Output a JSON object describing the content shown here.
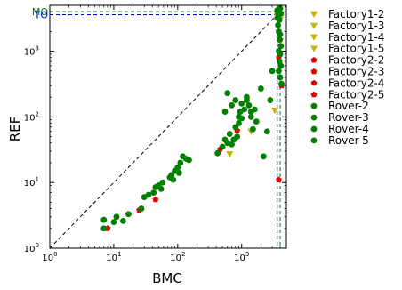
{
  "chart_data": {
    "type": "scatter",
    "xlabel": "BMC",
    "ylabel": "REF",
    "x_scale": "log",
    "y_scale": "log",
    "xlim": [
      1,
      5000
    ],
    "ylim": [
      1,
      5000
    ],
    "x_ticks": [
      {
        "value": 1,
        "base": "10",
        "exp": "0"
      },
      {
        "value": 10,
        "base": "10",
        "exp": "1"
      },
      {
        "value": 100,
        "base": "10",
        "exp": "2"
      },
      {
        "value": 1000,
        "base": "10",
        "exp": "3"
      }
    ],
    "y_ticks": [
      {
        "value": 1,
        "base": "10",
        "exp": "0"
      },
      {
        "value": 10,
        "base": "10",
        "exp": "1"
      },
      {
        "value": 100,
        "base": "10",
        "exp": "2"
      },
      {
        "value": 1000,
        "base": "10",
        "exp": "3"
      }
    ],
    "grid": false,
    "legend_position": "outside-right",
    "diagonal": true,
    "reference_lines": [
      {
        "label": "MO",
        "x": 4000,
        "y": 4000,
        "color": "#008000"
      },
      {
        "label": "TO",
        "x": 3600,
        "y": 3600,
        "color": "#0000cc"
      }
    ],
    "series": [
      {
        "name": "Factory1-2",
        "marker": "triangle",
        "color": "#c8b400",
        "points": [
          [
            650,
            27
          ],
          [
            3300,
            125
          ]
        ]
      },
      {
        "name": "Factory1-3",
        "marker": "triangle",
        "color": "#c8b400",
        "points": [
          [
            4000,
            1400
          ],
          [
            4000,
            3000
          ]
        ]
      },
      {
        "name": "Factory1-4",
        "marker": "triangle",
        "color": "#c8b400",
        "points": [
          [
            3600,
            3400
          ]
        ]
      },
      {
        "name": "Factory1-5",
        "marker": "triangle",
        "color": "#c8b400",
        "points": [
          [
            1400,
            60
          ]
        ]
      },
      {
        "name": "Factory2-2",
        "marker": "pentagon",
        "color": "#e00000",
        "points": [
          [
            8,
            2
          ]
        ]
      },
      {
        "name": "Factory2-3",
        "marker": "pentagon",
        "color": "#e00000",
        "points": [
          [
            25,
            3.8
          ],
          [
            45,
            5.5
          ]
        ]
      },
      {
        "name": "Factory2-4",
        "marker": "pentagon",
        "color": "#e00000",
        "points": [
          [
            460,
            32
          ],
          [
            850,
            62
          ],
          [
            3800,
            11
          ]
        ]
      },
      {
        "name": "Factory2-5",
        "marker": "pentagon",
        "color": "#e00000",
        "points": [
          [
            3800,
            800
          ],
          [
            4200,
            300
          ],
          [
            4000,
            1500
          ]
        ]
      },
      {
        "name": "Rover-2",
        "marker": "circle",
        "color": "#008000",
        "points": [
          [
            7,
            2.7
          ],
          [
            7,
            2
          ],
          [
            10,
            2.5
          ],
          [
            11,
            3
          ],
          [
            14,
            2.6
          ],
          [
            17,
            3.3
          ],
          [
            27,
            4
          ],
          [
            30,
            6
          ],
          [
            35,
            6.5
          ],
          [
            42,
            7
          ],
          [
            45,
            8.5
          ],
          [
            50,
            9
          ],
          [
            55,
            8
          ],
          [
            58,
            10
          ]
        ]
      },
      {
        "name": "Rover-3",
        "marker": "circle",
        "color": "#008000",
        "points": [
          [
            75,
            12
          ],
          [
            80,
            13
          ],
          [
            90,
            15
          ],
          [
            100,
            17
          ],
          [
            110,
            20
          ],
          [
            120,
            25
          ],
          [
            135,
            23
          ],
          [
            150,
            22
          ],
          [
            105,
            14
          ],
          [
            85,
            11
          ]
        ]
      },
      {
        "name": "Rover-4",
        "marker": "circle",
        "color": "#008000",
        "points": [
          [
            420,
            28
          ],
          [
            500,
            35
          ],
          [
            550,
            45
          ],
          [
            600,
            40
          ],
          [
            650,
            55
          ],
          [
            700,
            38
          ],
          [
            750,
            45
          ],
          [
            800,
            70
          ],
          [
            850,
            50
          ],
          [
            900,
            80
          ],
          [
            950,
            120
          ],
          [
            1000,
            95
          ],
          [
            1100,
            130
          ],
          [
            1200,
            180
          ],
          [
            1300,
            150
          ],
          [
            1400,
            100
          ],
          [
            1500,
            65
          ],
          [
            1600,
            130
          ],
          [
            1700,
            85
          ],
          [
            2000,
            270
          ],
          [
            2200,
            25
          ],
          [
            2500,
            60
          ],
          [
            2800,
            180
          ],
          [
            3000,
            500
          ],
          [
            550,
            120
          ],
          [
            600,
            230
          ],
          [
            700,
            150
          ],
          [
            800,
            180
          ],
          [
            900,
            100
          ],
          [
            1000,
            160
          ],
          [
            1200,
            200
          ],
          [
            1400,
            120
          ]
        ]
      },
      {
        "name": "Rover-5",
        "marker": "circle",
        "color": "#008000",
        "points": [
          [
            3600,
            4200
          ],
          [
            3700,
            3800
          ],
          [
            3800,
            3500
          ],
          [
            3900,
            3000
          ],
          [
            4000,
            4500
          ],
          [
            3700,
            2500
          ],
          [
            3800,
            2000
          ],
          [
            4000,
            1800
          ],
          [
            3900,
            1500
          ],
          [
            4100,
            1200
          ],
          [
            3800,
            1000
          ],
          [
            4000,
            900
          ],
          [
            3900,
            700
          ],
          [
            4100,
            600
          ],
          [
            3800,
            500
          ],
          [
            4000,
            400
          ],
          [
            4200,
            320
          ],
          [
            3700,
            4000
          ],
          [
            4100,
            3700
          ],
          [
            3600,
            3200
          ]
        ]
      }
    ]
  }
}
